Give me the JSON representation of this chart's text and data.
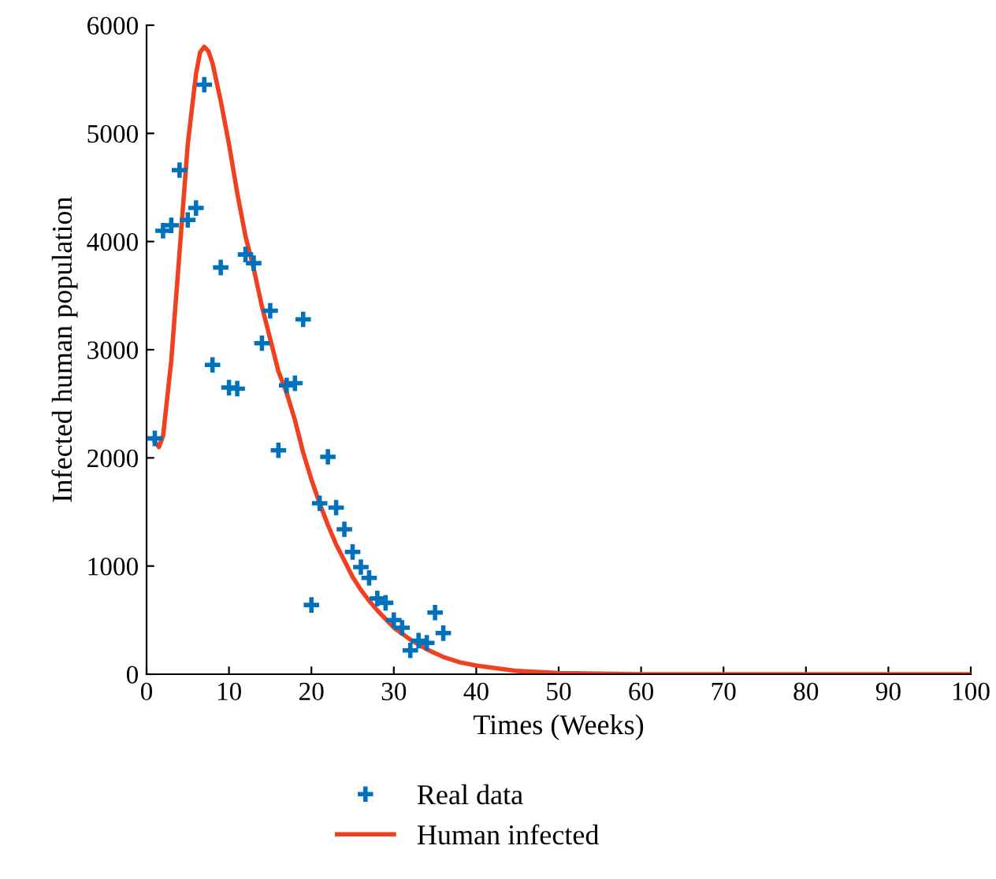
{
  "chart_data": {
    "type": "scatter",
    "xlabel": "Times (Weeks)",
    "ylabel": "Infected human population",
    "xlim": [
      0,
      100
    ],
    "ylim": [
      0,
      6000
    ],
    "xticks": [
      0,
      10,
      20,
      30,
      40,
      50,
      60,
      70,
      80,
      90,
      100
    ],
    "yticks": [
      0,
      1000,
      2000,
      3000,
      4000,
      5000,
      6000
    ],
    "grid": false,
    "legend": "bottom",
    "series": [
      {
        "name": "Real data",
        "marker": "cross",
        "color": "#0072bd",
        "x": [
          1,
          2,
          3,
          4,
          5,
          6,
          7,
          8,
          9,
          10,
          11,
          12,
          13,
          14,
          15,
          16,
          17,
          18,
          19,
          20,
          21,
          22,
          23,
          24,
          25,
          26,
          27,
          28,
          29,
          30,
          31,
          32,
          33,
          34,
          35,
          36
        ],
        "values": [
          2180,
          4100,
          4150,
          4660,
          4200,
          4310,
          5450,
          2860,
          3760,
          2650,
          2640,
          3880,
          3800,
          3060,
          3360,
          2070,
          2670,
          2690,
          3280,
          640,
          1580,
          2010,
          1540,
          1340,
          1130,
          990,
          890,
          700,
          660,
          500,
          430,
          220,
          310,
          290,
          570,
          380
        ]
      },
      {
        "name": "Human infected",
        "type": "line",
        "line_style": "solid",
        "color": "#f0401e",
        "x": [
          1,
          1.5,
          2,
          3,
          4,
          5,
          6,
          6.5,
          7,
          7.5,
          8,
          9,
          10,
          11,
          12,
          13,
          14,
          15,
          16,
          17,
          18,
          19,
          20,
          21,
          22,
          23,
          24,
          25,
          26,
          27,
          28,
          30,
          32,
          34,
          36,
          38,
          40,
          45,
          50,
          60,
          70,
          100
        ],
        "values": [
          2150,
          2100,
          2200,
          2900,
          3900,
          4900,
          5550,
          5750,
          5800,
          5760,
          5650,
          5300,
          4900,
          4450,
          4050,
          3750,
          3400,
          3100,
          2800,
          2600,
          2350,
          2050,
          1800,
          1580,
          1380,
          1200,
          1050,
          900,
          780,
          680,
          590,
          430,
          320,
          230,
          160,
          110,
          80,
          30,
          10,
          0,
          0,
          0
        ]
      }
    ]
  }
}
